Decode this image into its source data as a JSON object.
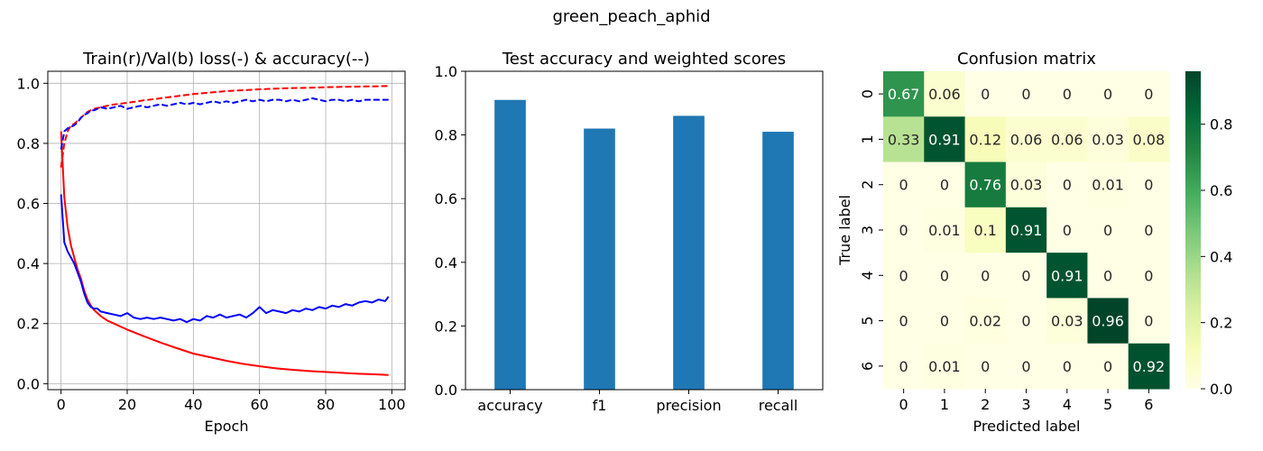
{
  "suptitle": "green_peach_aphid",
  "chart_data": [
    {
      "type": "line",
      "title": "Train(r)/Val(b) loss(-) & accuracy(--)",
      "xlabel": "Epoch",
      "ylabel": "",
      "xlim": [
        -4,
        104
      ],
      "ylim": [
        -0.02,
        1.04
      ],
      "xticks": [
        0,
        20,
        40,
        60,
        80,
        100
      ],
      "yticks": [
        0.0,
        0.2,
        0.4,
        0.6,
        0.8,
        1.0
      ],
      "grid": true,
      "series": [
        {
          "color": "#ff0000",
          "style": "solid",
          "x": [
            0,
            1,
            2,
            3,
            4,
            5,
            6,
            7,
            8,
            9,
            10,
            12,
            14,
            16,
            18,
            20,
            25,
            30,
            35,
            40,
            45,
            50,
            55,
            60,
            65,
            70,
            75,
            80,
            85,
            90,
            95,
            99
          ],
          "y": [
            0.84,
            0.62,
            0.52,
            0.46,
            0.42,
            0.38,
            0.35,
            0.31,
            0.28,
            0.26,
            0.245,
            0.225,
            0.21,
            0.2,
            0.19,
            0.18,
            0.158,
            0.137,
            0.118,
            0.1,
            0.088,
            0.076,
            0.066,
            0.058,
            0.051,
            0.046,
            0.042,
            0.039,
            0.036,
            0.033,
            0.031,
            0.029
          ]
        },
        {
          "color": "#0000ff",
          "style": "solid",
          "x": [
            0,
            1,
            2,
            3,
            4,
            5,
            6,
            7,
            8,
            9,
            10,
            11,
            12,
            14,
            16,
            18,
            20,
            22,
            24,
            26,
            28,
            30,
            32,
            34,
            36,
            38,
            40,
            42,
            44,
            46,
            48,
            50,
            52,
            54,
            56,
            58,
            60,
            62,
            64,
            66,
            68,
            70,
            72,
            74,
            76,
            78,
            80,
            82,
            84,
            86,
            88,
            90,
            92,
            94,
            96,
            98,
            99
          ],
          "y": [
            0.63,
            0.47,
            0.44,
            0.42,
            0.4,
            0.37,
            0.34,
            0.3,
            0.27,
            0.255,
            0.25,
            0.25,
            0.24,
            0.235,
            0.23,
            0.225,
            0.235,
            0.22,
            0.215,
            0.22,
            0.215,
            0.22,
            0.215,
            0.21,
            0.215,
            0.205,
            0.215,
            0.21,
            0.225,
            0.22,
            0.23,
            0.22,
            0.225,
            0.23,
            0.22,
            0.235,
            0.255,
            0.235,
            0.245,
            0.24,
            0.235,
            0.245,
            0.24,
            0.25,
            0.245,
            0.255,
            0.25,
            0.26,
            0.255,
            0.265,
            0.26,
            0.27,
            0.275,
            0.27,
            0.28,
            0.275,
            0.29
          ]
        },
        {
          "color": "#ff0000",
          "style": "dashed",
          "x": [
            0,
            1,
            2,
            3,
            4,
            5,
            6,
            7,
            8,
            9,
            10,
            12,
            15,
            20,
            25,
            30,
            35,
            40,
            45,
            50,
            55,
            60,
            65,
            70,
            75,
            80,
            85,
            90,
            95,
            99
          ],
          "y": [
            0.72,
            0.8,
            0.84,
            0.86,
            0.865,
            0.875,
            0.885,
            0.895,
            0.905,
            0.91,
            0.915,
            0.92,
            0.928,
            0.935,
            0.943,
            0.95,
            0.957,
            0.964,
            0.969,
            0.974,
            0.977,
            0.98,
            0.982,
            0.984,
            0.985,
            0.987,
            0.988,
            0.989,
            0.99,
            0.991
          ]
        },
        {
          "color": "#0000ff",
          "style": "dashed",
          "x": [
            0,
            1,
            2,
            3,
            4,
            5,
            6,
            7,
            8,
            9,
            10,
            11,
            12,
            14,
            16,
            18,
            20,
            22,
            24,
            26,
            28,
            30,
            32,
            34,
            36,
            38,
            40,
            42,
            44,
            46,
            48,
            50,
            52,
            54,
            56,
            58,
            60,
            62,
            64,
            66,
            68,
            70,
            72,
            74,
            76,
            78,
            80,
            82,
            84,
            86,
            88,
            90,
            92,
            94,
            96,
            98,
            99
          ],
          "y": [
            0.78,
            0.84,
            0.85,
            0.855,
            0.86,
            0.87,
            0.885,
            0.895,
            0.9,
            0.91,
            0.91,
            0.915,
            0.92,
            0.915,
            0.92,
            0.925,
            0.915,
            0.92,
            0.925,
            0.92,
            0.925,
            0.93,
            0.925,
            0.93,
            0.935,
            0.93,
            0.935,
            0.93,
            0.935,
            0.94,
            0.935,
            0.94,
            0.935,
            0.94,
            0.945,
            0.94,
            0.945,
            0.94,
            0.945,
            0.945,
            0.94,
            0.945,
            0.94,
            0.945,
            0.95,
            0.945,
            0.94,
            0.945,
            0.945,
            0.94,
            0.945,
            0.94,
            0.945,
            0.945,
            0.945,
            0.945,
            0.945
          ]
        }
      ]
    },
    {
      "type": "bar",
      "title": "Test accuracy and weighted scores",
      "categories": [
        "accuracy",
        "f1",
        "precision",
        "recall"
      ],
      "values": [
        0.91,
        0.82,
        0.86,
        0.81
      ],
      "color": "#1f77b4",
      "ylim": [
        0.0,
        1.0
      ],
      "yticks": [
        0.0,
        0.2,
        0.4,
        0.6,
        0.8,
        1.0
      ],
      "grid": false
    },
    {
      "type": "heatmap",
      "title": "Confusion matrix",
      "xlabel": "Predicted label",
      "ylabel": "True label",
      "row_labels": [
        "0",
        "1",
        "2",
        "3",
        "4",
        "5",
        "6"
      ],
      "col_labels": [
        "0",
        "1",
        "2",
        "3",
        "4",
        "5",
        "6"
      ],
      "matrix": [
        [
          0.67,
          0.06,
          0,
          0,
          0,
          0,
          0
        ],
        [
          0.33,
          0.91,
          0.12,
          0.06,
          0.06,
          0.03,
          0.08
        ],
        [
          0,
          0,
          0.76,
          0.03,
          0,
          0.01,
          0
        ],
        [
          0,
          0.01,
          0.1,
          0.91,
          0,
          0,
          0
        ],
        [
          0,
          0,
          0,
          0,
          0.91,
          0,
          0
        ],
        [
          0,
          0,
          0.02,
          0,
          0.03,
          0.96,
          0
        ],
        [
          0,
          0.01,
          0,
          0,
          0,
          0,
          0.92
        ]
      ],
      "colormap": "YlGn",
      "vmin": 0.0,
      "vmax": 0.96,
      "colorbar_ticks": [
        0.0,
        0.2,
        0.4,
        0.6,
        0.8
      ]
    }
  ]
}
